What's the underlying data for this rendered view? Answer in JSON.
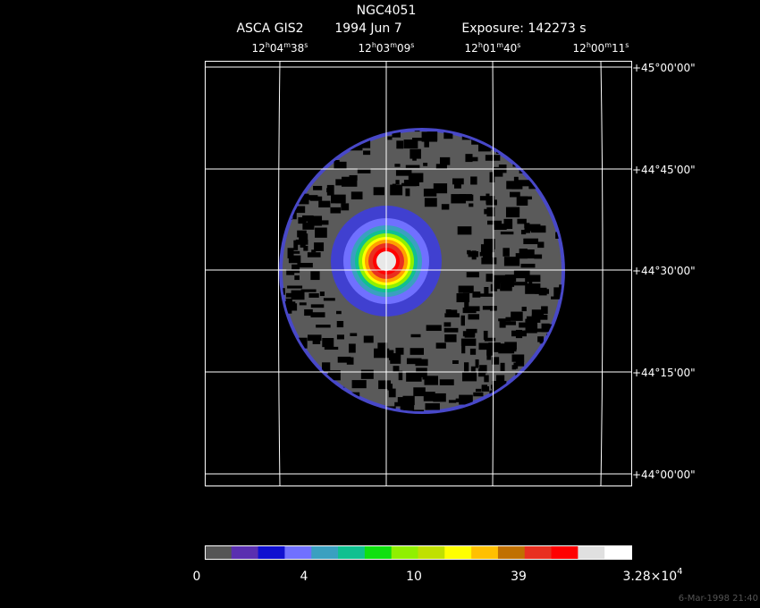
{
  "header": {
    "title": "NGC4051",
    "instrument": "ASCA GIS2",
    "date": "1994 Jun  7",
    "exposure": "Exposure: 142273 s"
  },
  "ra_labels": [
    [
      "12",
      "h",
      "04",
      "m",
      "38",
      "s"
    ],
    [
      "12",
      "h",
      "03",
      "m",
      "09",
      "s"
    ],
    [
      "12",
      "h",
      "01",
      "m",
      "40",
      "s"
    ],
    [
      "12",
      "h",
      "00",
      "m",
      "11",
      "s"
    ]
  ],
  "dec_labels": [
    "+45°00'00\"",
    "+44°45'00\"",
    "+44°30'00\"",
    "+44°15'00\"",
    "+44°00'00\""
  ],
  "colorbar": {
    "colors": [
      "#555555",
      "#5a2fb0",
      "#1010d0",
      "#7070ff",
      "#3aa0c0",
      "#10c090",
      "#10e010",
      "#90f000",
      "#c0e000",
      "#ffff00",
      "#ffc000",
      "#c07000",
      "#e83020",
      "#ff0000",
      "#e0e0e0",
      "#ffffff"
    ],
    "labels": [
      "0",
      "4",
      "10",
      "39"
    ],
    "max_label": {
      "base": "3.28×10",
      "exponent": "4"
    }
  },
  "footer": "6-Mar-1998 21:40"
}
